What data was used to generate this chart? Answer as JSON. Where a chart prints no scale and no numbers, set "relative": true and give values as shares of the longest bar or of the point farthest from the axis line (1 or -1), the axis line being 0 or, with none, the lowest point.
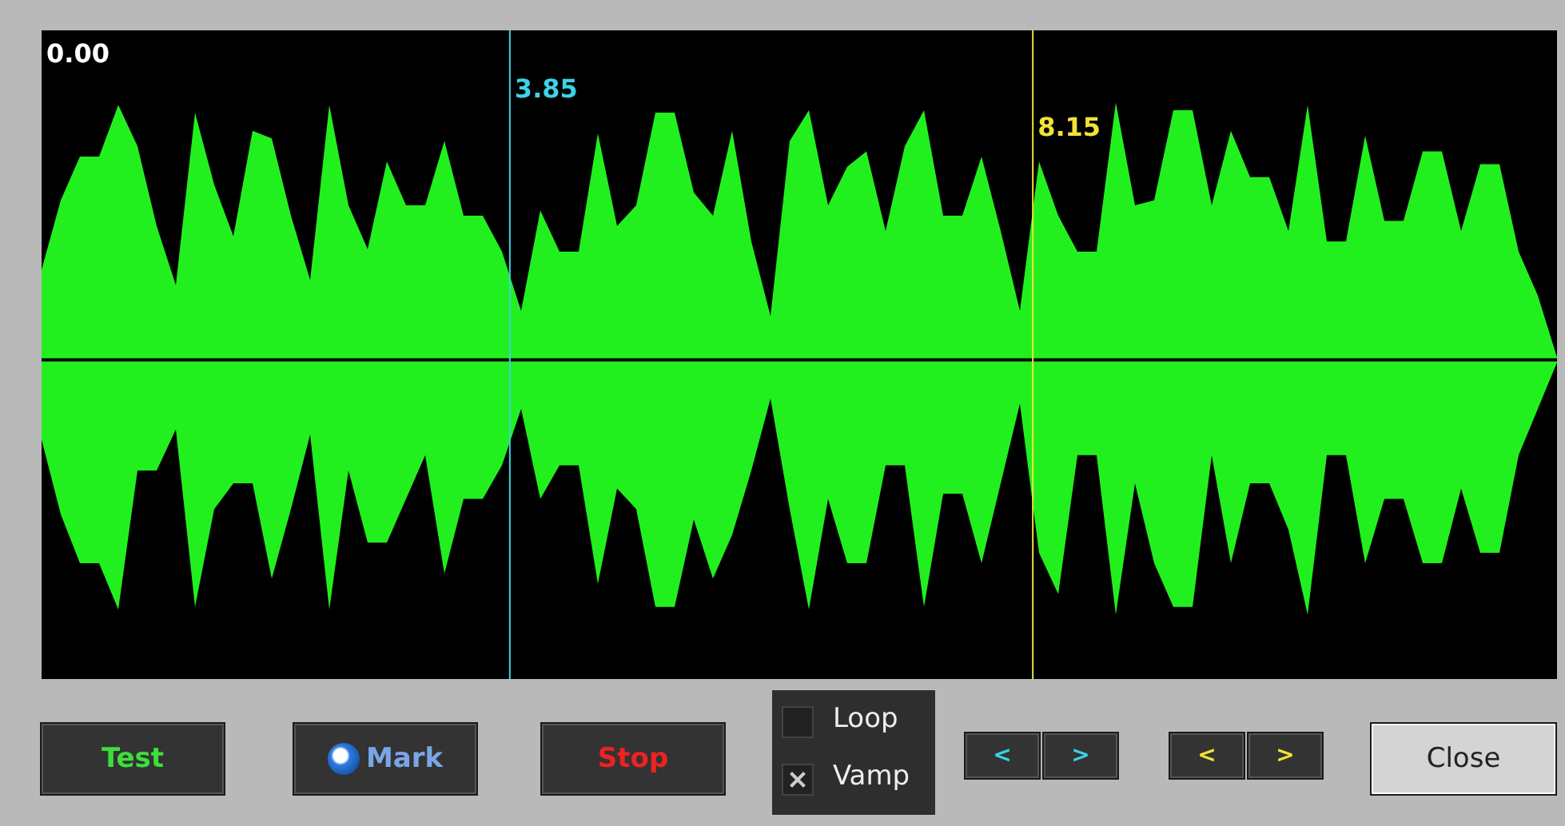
{
  "chart_data": {
    "type": "area",
    "relative": true,
    "categories": [
      null,
      null,
      null,
      null,
      null,
      null,
      null,
      null,
      null,
      null,
      null,
      null,
      null,
      null,
      null,
      null,
      null,
      null,
      null,
      null,
      null,
      null,
      null,
      null,
      null,
      null,
      null,
      null,
      null,
      null,
      null,
      null,
      null,
      null,
      null,
      null,
      null,
      null,
      null,
      null,
      null,
      null,
      null,
      null,
      null,
      null,
      null,
      null,
      null,
      null,
      null,
      null,
      null,
      null,
      null,
      null,
      null,
      null,
      null,
      null,
      null,
      null,
      null,
      null,
      null,
      null,
      null,
      null,
      null,
      null,
      null,
      null,
      null,
      null,
      null,
      null,
      null,
      null,
      null,
      null
    ],
    "series": [
      {
        "color": "#22f01e",
        "values": [
          0.35,
          0.62,
          0.79,
          0.79,
          0.99,
          0.83,
          0.52,
          0.29,
          0.96,
          0.68,
          0.48,
          0.89,
          0.86,
          0.56,
          0.31,
          0.99,
          0.6,
          0.43,
          0.77,
          0.6,
          0.6,
          0.85,
          0.56,
          0.56,
          0.42,
          0.19,
          0.58,
          0.42,
          0.42,
          0.88,
          0.52,
          0.6,
          0.96,
          0.96,
          0.65,
          0.56,
          0.89,
          0.46,
          0.17,
          0.85,
          0.97,
          0.6,
          0.75,
          0.81,
          0.5,
          0.83,
          0.97,
          0.56,
          0.56,
          0.79,
          0.5,
          0.19,
          0.77,
          0.56,
          0.42,
          0.42,
          1,
          0.6,
          0.62,
          0.97,
          0.97,
          0.6,
          0.89,
          0.71,
          0.71,
          0.5,
          0.99,
          0.46,
          0.46,
          0.87,
          0.54,
          0.54,
          0.81,
          0.81,
          0.5,
          0.76,
          0.76,
          0.42,
          0.25,
          0.01
        ]
      },
      {
        "color": "#22f01e",
        "values": [
          -0.31,
          -0.6,
          -0.79,
          -0.79,
          -0.97,
          -0.43,
          -0.43,
          -0.27,
          -0.96,
          -0.58,
          -0.48,
          -0.48,
          -0.85,
          -0.58,
          -0.29,
          -0.97,
          -0.43,
          -0.71,
          -0.71,
          -0.54,
          -0.37,
          -0.83,
          -0.54,
          -0.54,
          -0.41,
          -0.19,
          -0.54,
          -0.41,
          -0.41,
          -0.87,
          -0.5,
          -0.58,
          -0.96,
          -0.96,
          -0.62,
          -0.85,
          -0.68,
          -0.43,
          -0.15,
          -0.58,
          -0.97,
          -0.54,
          -0.79,
          -0.79,
          -0.41,
          -0.41,
          -0.96,
          -0.52,
          -0.52,
          -0.79,
          -0.48,
          -0.17,
          -0.75,
          -0.91,
          -0.37,
          -0.37,
          -0.99,
          -0.48,
          -0.79,
          -0.96,
          -0.96,
          -0.37,
          -0.79,
          -0.48,
          -0.48,
          -0.66,
          -0.99,
          -0.37,
          -0.37,
          -0.79,
          -0.54,
          -0.54,
          -0.79,
          -0.79,
          -0.5,
          -0.75,
          -0.75,
          -0.37,
          -0.19,
          -0.01
        ]
      }
    ],
    "annotations": [
      "0.00",
      "3.85",
      "8.15",
      "Test",
      "Mark",
      "Stop",
      "Loop",
      "Vamp",
      "<",
      ">",
      "<",
      ">",
      "Close"
    ]
  }
}
